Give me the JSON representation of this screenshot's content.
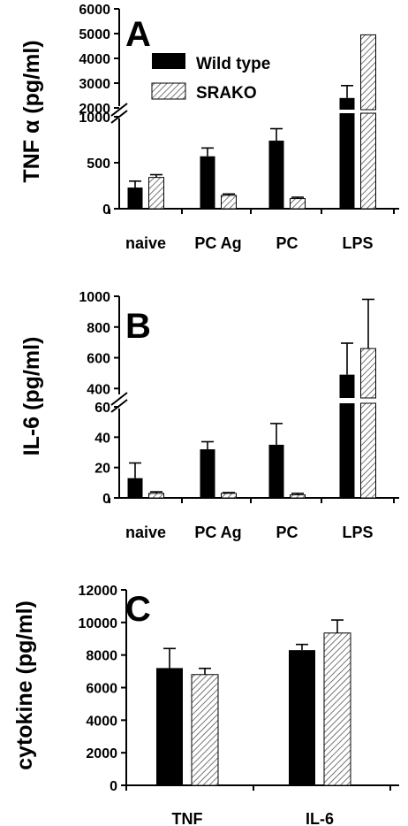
{
  "colors": {
    "wild_type": "#000000",
    "srako_hatch": "#555555",
    "srako_fill": "#ffffff"
  },
  "chart_data": [
    {
      "panel": "A",
      "type": "bar",
      "ylabel": "TNF α (pg/ml)",
      "categories": [
        "naive",
        "PC Ag",
        "PC",
        "LPS"
      ],
      "axis_break": {
        "lower_range": [
          0,
          1000
        ],
        "upper_range": [
          2000,
          6000
        ]
      },
      "lower_ticks": [
        0,
        500,
        1000
      ],
      "upper_ticks": [
        2000,
        3000,
        4000,
        5000,
        6000
      ],
      "legend": {
        "placement": "top-left",
        "entries": [
          "Wild type",
          "SRAKO"
        ]
      },
      "series": [
        {
          "name": "Wild type",
          "values": [
            230,
            570,
            740,
            2400
          ],
          "errors": [
            70,
            90,
            130,
            500
          ]
        },
        {
          "name": "SRAKO",
          "values": [
            340,
            145,
            110,
            4950
          ],
          "errors": [
            30,
            15,
            15,
            0
          ]
        }
      ]
    },
    {
      "panel": "B",
      "type": "bar",
      "ylabel": "IL-6 (pg/ml)",
      "categories": [
        "naive",
        "PC Ag",
        "PC",
        "LPS"
      ],
      "axis_break": {
        "lower_range": [
          0,
          60
        ],
        "upper_range": [
          350,
          1000
        ]
      },
      "lower_ticks": [
        0,
        20,
        40,
        60
      ],
      "upper_ticks": [
        400,
        600,
        800,
        1000
      ],
      "series": [
        {
          "name": "Wild type",
          "values": [
            13,
            32,
            35,
            490
          ],
          "errors": [
            10,
            5,
            14,
            205
          ]
        },
        {
          "name": "SRAKO",
          "values": [
            3,
            3,
            2,
            660
          ],
          "errors": [
            1,
            0.5,
            1,
            320
          ]
        }
      ]
    },
    {
      "panel": "C",
      "type": "bar",
      "ylabel": "cytokine (pg/ml)",
      "categories": [
        "TNF",
        "IL-6"
      ],
      "ylim": [
        0,
        12000
      ],
      "ticks": [
        0,
        2000,
        4000,
        6000,
        8000,
        10000,
        12000
      ],
      "series": [
        {
          "name": "Wild type",
          "values": [
            7200,
            8300
          ],
          "errors": [
            1200,
            350
          ]
        },
        {
          "name": "SRAKO",
          "values": [
            6800,
            9350
          ],
          "errors": [
            380,
            800
          ]
        }
      ]
    }
  ]
}
